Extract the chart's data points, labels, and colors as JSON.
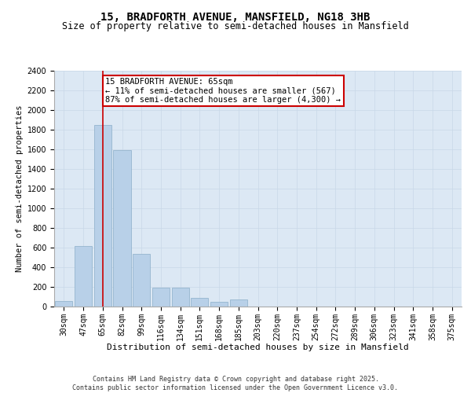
{
  "title1": "15, BRADFORTH AVENUE, MANSFIELD, NG18 3HB",
  "title2": "Size of property relative to semi-detached houses in Mansfield",
  "xlabel": "Distribution of semi-detached houses by size in Mansfield",
  "ylabel": "Number of semi-detached properties",
  "categories": [
    "30sqm",
    "47sqm",
    "65sqm",
    "82sqm",
    "99sqm",
    "116sqm",
    "134sqm",
    "151sqm",
    "168sqm",
    "185sqm",
    "203sqm",
    "220sqm",
    "237sqm",
    "254sqm",
    "272sqm",
    "289sqm",
    "306sqm",
    "323sqm",
    "341sqm",
    "358sqm",
    "375sqm"
  ],
  "values": [
    60,
    615,
    1850,
    1590,
    540,
    195,
    195,
    85,
    50,
    70,
    0,
    0,
    0,
    0,
    0,
    0,
    0,
    0,
    0,
    0,
    0
  ],
  "bar_color": "#b8d0e8",
  "bar_edge_color": "#8aaec8",
  "grid_color": "#c8d8e8",
  "background_color": "#dce8f4",
  "vline_x": 2,
  "vline_color": "#cc0000",
  "annotation_text": "15 BRADFORTH AVENUE: 65sqm\n← 11% of semi-detached houses are smaller (567)\n87% of semi-detached houses are larger (4,300) →",
  "annotation_box_color": "#ffffff",
  "annotation_box_edge": "#cc0000",
  "ylim": [
    0,
    2400
  ],
  "yticks": [
    0,
    200,
    400,
    600,
    800,
    1000,
    1200,
    1400,
    1600,
    1800,
    2000,
    2200,
    2400
  ],
  "footnote": "Contains HM Land Registry data © Crown copyright and database right 2025.\nContains public sector information licensed under the Open Government Licence v3.0.",
  "title1_fontsize": 10,
  "title2_fontsize": 8.5,
  "xlabel_fontsize": 8,
  "ylabel_fontsize": 7.5,
  "tick_fontsize": 7,
  "annotation_fontsize": 7.5,
  "footnote_fontsize": 6
}
